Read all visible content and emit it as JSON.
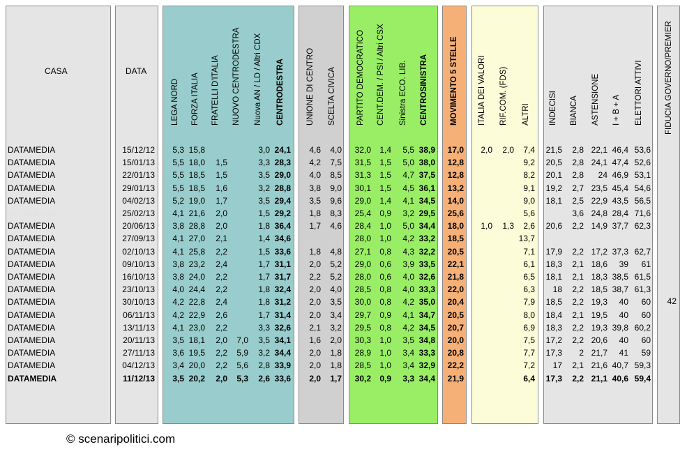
{
  "headers": {
    "casa": "CASA",
    "data": "DATA",
    "cdx": [
      "LEGA NORD",
      "FORZA ITALIA",
      "FRATELLI D'ITALIA",
      "NUOVO  CENTRODESTRA",
      "Nuova AN / LD / Altri CDX",
      "CENTRODESTRA"
    ],
    "centro": [
      "UNIONE DI CENTRO",
      "SCELTA CIVICA"
    ],
    "csx": [
      "PARTITO DEMOCRATICO",
      "CENT.DEM. / PSI / Altri CSX",
      "Sinistra ECO. LIB.",
      "CENTROSINISTRA"
    ],
    "m5s": "MOVIMENTO 5 STELLE",
    "others": [
      "ITALIA DEI VALORI",
      "RIF.COM. (FDS)",
      "ALTRI"
    ],
    "stats": [
      "INDECISI",
      "BIANCA",
      "ASTENSIONE",
      "I + B + A",
      "ELETTORI ATTIVI"
    ],
    "fiducia": "FIDUCIA GOVERNO/PREMIER"
  },
  "table": {
    "columns": [
      "casa",
      "data",
      "lega",
      "fi",
      "fdi",
      "ncd",
      "altri_cdx",
      "cdx",
      "udc",
      "sc",
      "pd",
      "centdem",
      "sel",
      "csx",
      "m5s",
      "idv",
      "rif",
      "altri",
      "indecisi",
      "bianca",
      "astensione",
      "iba",
      "elettori",
      "fiducia"
    ],
    "rows": [
      {
        "casa": "DATAMEDIA",
        "data": "15/12/12",
        "lega": "5,3",
        "fi": "15,8",
        "fdi": "",
        "ncd": "",
        "altri_cdx": "3,0",
        "cdx": "24,1",
        "udc": "4,6",
        "sc": "4,0",
        "pd": "32,0",
        "centdem": "1,4",
        "sel": "5,5",
        "csx": "38,9",
        "m5s": "17,0",
        "idv": "2,0",
        "rif": "2,0",
        "altri": "7,4",
        "indecisi": "21,5",
        "bianca": "2,8",
        "astensione": "22,1",
        "iba": "46,4",
        "elettori": "53,6",
        "fiducia": ""
      },
      {
        "casa": "DATAMEDIA",
        "data": "15/01/13",
        "lega": "5,5",
        "fi": "18,0",
        "fdi": "1,5",
        "ncd": "",
        "altri_cdx": "3,3",
        "cdx": "28,3",
        "udc": "4,2",
        "sc": "7,5",
        "pd": "31,5",
        "centdem": "1,5",
        "sel": "5,0",
        "csx": "38,0",
        "m5s": "12,8",
        "idv": "",
        "rif": "",
        "altri": "9,2",
        "indecisi": "20,5",
        "bianca": "2,8",
        "astensione": "24,1",
        "iba": "47,4",
        "elettori": "52,6",
        "fiducia": ""
      },
      {
        "casa": "DATAMEDIA",
        "data": "22/01/13",
        "lega": "5,5",
        "fi": "18,5",
        "fdi": "1,5",
        "ncd": "",
        "altri_cdx": "3,5",
        "cdx": "29,0",
        "udc": "4,0",
        "sc": "8,5",
        "pd": "31,3",
        "centdem": "1,5",
        "sel": "4,7",
        "csx": "37,5",
        "m5s": "12,8",
        "idv": "",
        "rif": "",
        "altri": "8,2",
        "indecisi": "20,1",
        "bianca": "2,8",
        "astensione": "24",
        "iba": "46,9",
        "elettori": "53,1",
        "fiducia": ""
      },
      {
        "casa": "DATAMEDIA",
        "data": "29/01/13",
        "lega": "5,5",
        "fi": "18,5",
        "fdi": "1,6",
        "ncd": "",
        "altri_cdx": "3,2",
        "cdx": "28,8",
        "udc": "3,8",
        "sc": "9,0",
        "pd": "30,1",
        "centdem": "1,5",
        "sel": "4,5",
        "csx": "36,1",
        "m5s": "13,2",
        "idv": "",
        "rif": "",
        "altri": "9,1",
        "indecisi": "19,2",
        "bianca": "2,7",
        "astensione": "23,5",
        "iba": "45,4",
        "elettori": "54,6",
        "fiducia": ""
      },
      {
        "casa": "DATAMEDIA",
        "data": "04/02/13",
        "lega": "5,2",
        "fi": "19,0",
        "fdi": "1,7",
        "ncd": "",
        "altri_cdx": "3,5",
        "cdx": "29,4",
        "udc": "3,5",
        "sc": "9,6",
        "pd": "29,0",
        "centdem": "1,4",
        "sel": "4,1",
        "csx": "34,5",
        "m5s": "14,0",
        "idv": "",
        "rif": "",
        "altri": "9,0",
        "indecisi": "18,1",
        "bianca": "2,5",
        "astensione": "22,9",
        "iba": "43,5",
        "elettori": "56,5",
        "fiducia": ""
      },
      {
        "casa": "DATAMEDIA",
        "data": "25/02/13",
        "lega": "4,1",
        "fi": "21,6",
        "fdi": "2,0",
        "ncd": "",
        "altri_cdx": "1,5",
        "cdx": "29,2",
        "udc": "1,8",
        "sc": "8,3",
        "pd": "25,4",
        "centdem": "0,9",
        "sel": "3,2",
        "csx": "29,5",
        "m5s": "25,6",
        "idv": "",
        "rif": "",
        "altri": "5,6",
        "indecisi": "",
        "bianca": "3,6",
        "astensione": "24,8",
        "iba": "28,4",
        "elettori": "71,6",
        "fiducia": "",
        "faded": true
      },
      {
        "casa": "DATAMEDIA",
        "data": "20/06/13",
        "lega": "3,8",
        "fi": "28,8",
        "fdi": "2,0",
        "ncd": "",
        "altri_cdx": "1,8",
        "cdx": "36,4",
        "udc": "1,7",
        "sc": "4,6",
        "pd": "28,4",
        "centdem": "1,0",
        "sel": "5,0",
        "csx": "34,4",
        "m5s": "18,0",
        "idv": "1,0",
        "rif": "1,3",
        "altri": "2,6",
        "indecisi": "20,6",
        "bianca": "2,2",
        "astensione": "14,9",
        "iba": "37,7",
        "elettori": "62,3",
        "fiducia": ""
      },
      {
        "casa": "DATAMEDIA",
        "data": "27/09/13",
        "lega": "4,1",
        "fi": "27,0",
        "fdi": "2,1",
        "ncd": "",
        "altri_cdx": "1,4",
        "cdx": "34,6",
        "udc": "",
        "sc": "",
        "pd": "28,0",
        "centdem": "1,0",
        "sel": "4,2",
        "csx": "33,2",
        "m5s": "18,5",
        "idv": "",
        "rif": "",
        "altri": "13,7",
        "indecisi": "",
        "bianca": "",
        "astensione": "",
        "iba": "",
        "elettori": "",
        "fiducia": ""
      },
      {
        "casa": "DATAMEDIA",
        "data": "02/10/13",
        "lega": "4,1",
        "fi": "25,8",
        "fdi": "2,2",
        "ncd": "",
        "altri_cdx": "1,5",
        "cdx": "33,6",
        "udc": "1,8",
        "sc": "4,8",
        "pd": "27,1",
        "centdem": "0,8",
        "sel": "4,3",
        "csx": "32,2",
        "m5s": "20,5",
        "idv": "",
        "rif": "",
        "altri": "7,1",
        "indecisi": "17,9",
        "bianca": "2,2",
        "astensione": "17,2",
        "iba": "37,3",
        "elettori": "62,7",
        "fiducia": ""
      },
      {
        "casa": "DATAMEDIA",
        "data": "09/10/13",
        "lega": "3,8",
        "fi": "23,2",
        "fdi": "2,4",
        "ncd": "",
        "altri_cdx": "1,7",
        "cdx": "31,1",
        "udc": "2,0",
        "sc": "5,2",
        "pd": "29,0",
        "centdem": "0,6",
        "sel": "3,9",
        "csx": "33,5",
        "m5s": "22,1",
        "idv": "",
        "rif": "",
        "altri": "6,1",
        "indecisi": "18,3",
        "bianca": "2,1",
        "astensione": "18,6",
        "iba": "39",
        "elettori": "61",
        "fiducia": ""
      },
      {
        "casa": "DATAMEDIA",
        "data": "16/10/13",
        "lega": "3,8",
        "fi": "24,0",
        "fdi": "2,2",
        "ncd": "",
        "altri_cdx": "1,7",
        "cdx": "31,7",
        "udc": "2,2",
        "sc": "5,2",
        "pd": "28,0",
        "centdem": "0,6",
        "sel": "4,0",
        "csx": "32,6",
        "m5s": "21,8",
        "idv": "",
        "rif": "",
        "altri": "6,5",
        "indecisi": "18,1",
        "bianca": "2,1",
        "astensione": "18,3",
        "iba": "38,5",
        "elettori": "61,5",
        "fiducia": ""
      },
      {
        "casa": "DATAMEDIA",
        "data": "23/10/13",
        "lega": "4,0",
        "fi": "24,4",
        "fdi": "2,2",
        "ncd": "",
        "altri_cdx": "1,8",
        "cdx": "32,4",
        "udc": "2,0",
        "sc": "4,0",
        "pd": "28,5",
        "centdem": "0,8",
        "sel": "4,0",
        "csx": "33,3",
        "m5s": "22,0",
        "idv": "",
        "rif": "",
        "altri": "6,3",
        "indecisi": "18",
        "bianca": "2,2",
        "astensione": "18,5",
        "iba": "38,7",
        "elettori": "61,3",
        "fiducia": ""
      },
      {
        "casa": "DATAMEDIA",
        "data": "30/10/13",
        "lega": "4,2",
        "fi": "22,8",
        "fdi": "2,4",
        "ncd": "",
        "altri_cdx": "1,8",
        "cdx": "31,2",
        "udc": "2,0",
        "sc": "3,5",
        "pd": "30,0",
        "centdem": "0,8",
        "sel": "4,2",
        "csx": "35,0",
        "m5s": "20,4",
        "idv": "",
        "rif": "",
        "altri": "7,9",
        "indecisi": "18,5",
        "bianca": "2,2",
        "astensione": "19,3",
        "iba": "40",
        "elettori": "60",
        "fiducia": "42"
      },
      {
        "casa": "DATAMEDIA",
        "data": "06/11/13",
        "lega": "4,2",
        "fi": "22,9",
        "fdi": "2,6",
        "ncd": "",
        "altri_cdx": "1,7",
        "cdx": "31,4",
        "udc": "2,0",
        "sc": "3,4",
        "pd": "29,7",
        "centdem": "0,9",
        "sel": "4,1",
        "csx": "34,7",
        "m5s": "20,5",
        "idv": "",
        "rif": "",
        "altri": "8,0",
        "indecisi": "18,4",
        "bianca": "2,1",
        "astensione": "19,5",
        "iba": "40",
        "elettori": "60",
        "fiducia": ""
      },
      {
        "casa": "DATAMEDIA",
        "data": "13/11/13",
        "lega": "4,1",
        "fi": "23,0",
        "fdi": "2,2",
        "ncd": "",
        "altri_cdx": "3,3",
        "cdx": "32,6",
        "udc": "2,1",
        "sc": "3,2",
        "pd": "29,5",
        "centdem": "0,8",
        "sel": "4,2",
        "csx": "34,5",
        "m5s": "20,7",
        "idv": "",
        "rif": "",
        "altri": "6,9",
        "indecisi": "18,3",
        "bianca": "2,2",
        "astensione": "19,3",
        "iba": "39,8",
        "elettori": "60,2",
        "fiducia": ""
      },
      {
        "casa": "DATAMEDIA",
        "data": "20/11/13",
        "lega": "3,5",
        "fi": "18,1",
        "fdi": "2,0",
        "ncd": "7,0",
        "altri_cdx": "3,5",
        "cdx": "34,1",
        "udc": "1,6",
        "sc": "2,0",
        "pd": "30,3",
        "centdem": "1,0",
        "sel": "3,5",
        "csx": "34,8",
        "m5s": "20,0",
        "idv": "",
        "rif": "",
        "altri": "7,5",
        "indecisi": "17,2",
        "bianca": "2,2",
        "astensione": "20,6",
        "iba": "40",
        "elettori": "60",
        "fiducia": ""
      },
      {
        "casa": "DATAMEDIA",
        "data": "27/11/13",
        "lega": "3,6",
        "fi": "19,5",
        "fdi": "2,2",
        "ncd": "5,9",
        "altri_cdx": "3,2",
        "cdx": "34,4",
        "udc": "2,0",
        "sc": "1,8",
        "pd": "28,9",
        "centdem": "1,0",
        "sel": "3,4",
        "csx": "33,3",
        "m5s": "20,8",
        "idv": "",
        "rif": "",
        "altri": "7,7",
        "indecisi": "17,3",
        "bianca": "2",
        "astensione": "21,7",
        "iba": "41",
        "elettori": "59",
        "fiducia": ""
      },
      {
        "casa": "DATAMEDIA",
        "data": "04/12/13",
        "lega": "3,4",
        "fi": "20,0",
        "fdi": "2,2",
        "ncd": "5,6",
        "altri_cdx": "2,8",
        "cdx": "33,9",
        "udc": "2,0",
        "sc": "1,8",
        "pd": "28,5",
        "centdem": "1,0",
        "sel": "3,4",
        "csx": "32,9",
        "m5s": "22,2",
        "idv": "",
        "rif": "",
        "altri": "7,2",
        "indecisi": "17",
        "bianca": "2,1",
        "astensione": "21,6",
        "iba": "40,7",
        "elettori": "59,3",
        "fiducia": ""
      },
      {
        "casa": "DATAMEDIA",
        "data": "11/12/13",
        "lega": "3,5",
        "fi": "20,2",
        "fdi": "2,0",
        "ncd": "5,3",
        "altri_cdx": "2,6",
        "cdx": "33,6",
        "udc": "2,0",
        "sc": "1,7",
        "pd": "30,2",
        "centdem": "0,9",
        "sel": "3,3",
        "csx": "34,4",
        "m5s": "21,9",
        "idv": "",
        "rif": "",
        "altri": "6,4",
        "indecisi": "17,3",
        "bianca": "2,2",
        "astensione": "21,1",
        "iba": "40,6",
        "elettori": "59,4",
        "fiducia": "",
        "bold": true
      }
    ]
  },
  "credit": "© scenaripolitici.com",
  "colors": {
    "teal": "#99cccc",
    "green": "#99ee66",
    "orange": "#f5b078",
    "yellow": "#fcfcd8",
    "gray": "#e5e5e5",
    "grayd": "#d0d0d0"
  }
}
